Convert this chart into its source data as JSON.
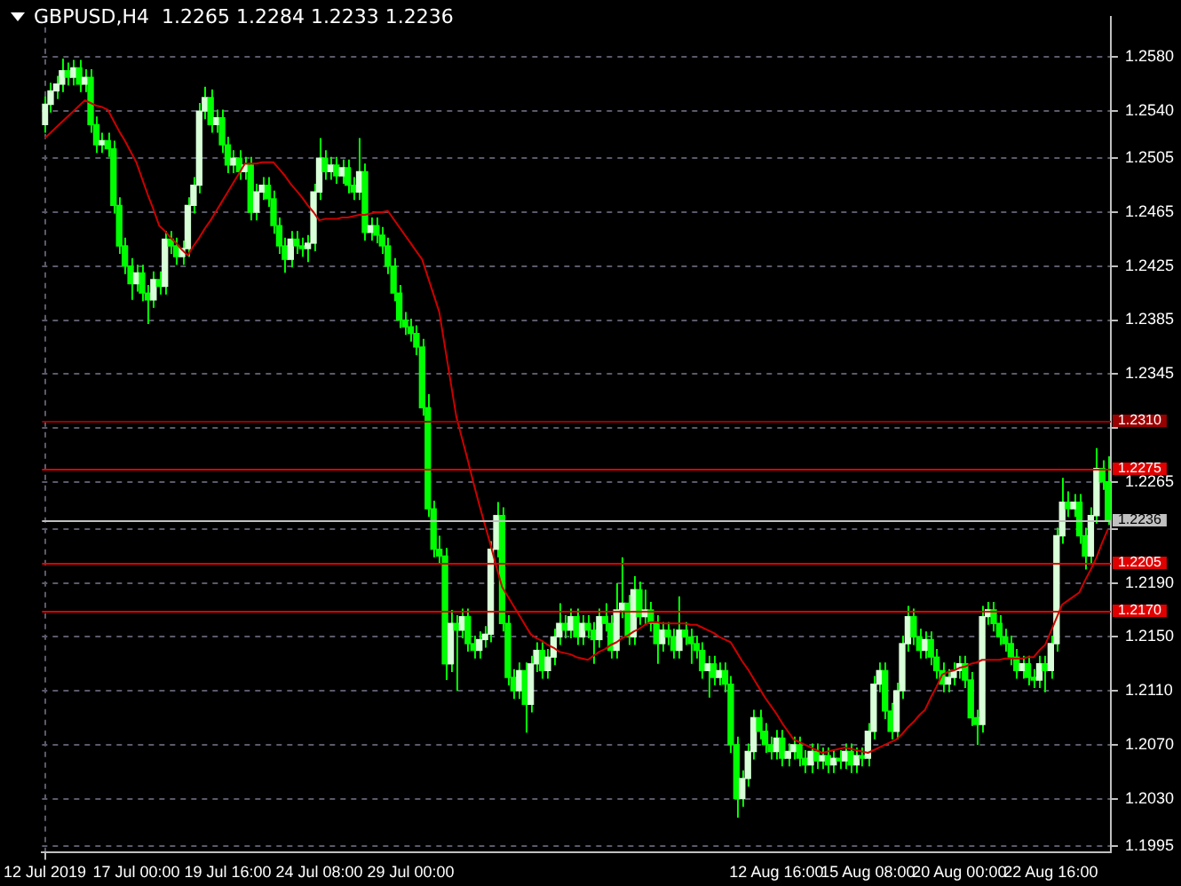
{
  "chart_data": {
    "type": "candlestick",
    "title": "GBPUSD,H4  1.2265 1.2284 1.2233 1.2236",
    "categories": [
      "12 Jul 2019",
      null,
      null,
      null,
      null,
      null,
      null,
      null,
      null,
      null,
      null,
      null,
      null,
      null,
      null,
      null,
      "17 Jul 00:00",
      null,
      null,
      null,
      null,
      null,
      null,
      null,
      null,
      null,
      null,
      null,
      null,
      null,
      null,
      null,
      "19 Jul 16:00",
      null,
      null,
      null,
      null,
      null,
      null,
      null,
      null,
      null,
      null,
      null,
      null,
      null,
      null,
      null,
      "24 Jul 08:00",
      null,
      null,
      null,
      null,
      null,
      null,
      null,
      null,
      null,
      null,
      null,
      null,
      null,
      null,
      null,
      "29 Jul 00:00",
      null,
      null,
      null,
      null,
      null,
      null,
      null,
      null,
      null,
      null,
      null,
      null,
      null,
      null,
      null,
      null,
      null,
      null,
      null,
      null,
      null,
      null,
      null,
      null,
      null,
      null,
      null,
      null,
      null,
      null,
      null,
      null,
      null,
      null,
      null,
      null,
      null,
      null,
      null,
      null,
      null,
      null,
      null,
      null,
      null,
      null,
      null,
      null,
      null,
      null,
      null,
      null,
      null,
      null,
      null,
      null,
      null,
      null,
      null,
      null,
      null,
      null,
      null,
      "12 Aug 16:00",
      null,
      null,
      null,
      null,
      null,
      null,
      null,
      null,
      null,
      null,
      null,
      null,
      null,
      null,
      null,
      "15 Aug 08:00",
      null,
      null,
      null,
      null,
      null,
      null,
      null,
      null,
      null,
      null,
      null,
      null,
      null,
      null,
      null,
      "20 Aug 00:00",
      null,
      null,
      null,
      null,
      null,
      null,
      null,
      null,
      null,
      null,
      null,
      null,
      null,
      null,
      null,
      "22 Aug 16:00",
      null,
      null,
      null,
      null,
      null,
      null,
      null,
      null,
      null,
      null
    ],
    "series": [
      {
        "type": "candlestick",
        "color": "#00ff00",
        "colors": [
          "#d8ffd8",
          "#d8ffd8",
          "#d8ffd8",
          "#d8ffd8",
          "#00ff00",
          "#d8ffd8",
          "#00ff00",
          "#d8ffd8",
          "#00ff00",
          "#00ff00",
          "#d8ffd8",
          "#00ff00",
          "#00ff00",
          "#00ff00",
          "#00ff00",
          "#00ff00",
          "#d8ffd8",
          "#00ff00",
          "#00ff00",
          "#d8ffd8",
          "#00ff00",
          "#d8ffd8",
          "#00ff00",
          "#00ff00",
          "#d8ffd8",
          "#d8ffd8",
          "#d8ffd8",
          "#d8ffd8",
          "#d8ffd8",
          "#00ff00",
          "#d8ffd8",
          "#00ff00",
          "#00ff00",
          "#d8ffd8",
          "#00ff00",
          "#d8ffd8",
          "#00ff00",
          "#d8ffd8",
          "#d8ffd8",
          "#00ff00",
          "#00ff00",
          "#00ff00",
          "#00ff00",
          "#d8ffd8",
          "#00ff00",
          "#00ff00",
          "#d8ffd8",
          "#d8ffd8",
          "#d8ffd8",
          "#00ff00",
          "#d8ffd8",
          "#00ff00",
          "#d8ffd8",
          "#00ff00",
          "#00ff00",
          "#d8ffd8",
          "#00ff00",
          "#d8ffd8",
          "#00ff00",
          "#00ff00",
          "#00ff00",
          "#00ff00",
          "#00ff00",
          "#00ff00",
          "#00ff00",
          "#00ff00",
          "#00ff00",
          "#00ff00",
          "#00ff00",
          "#00ff00",
          "#00ff00",
          "#d8ffd8",
          "#00ff00",
          "#d8ffd8",
          "#00ff00",
          "#00ff00",
          "#d8ffd8",
          "#d8ffd8",
          "#d8ffd8",
          "#d8ffd8",
          "#00ff00",
          "#00ff00",
          "#00ff00",
          "#d8ffd8",
          "#00ff00",
          "#d8ffd8",
          "#d8ffd8",
          "#00ff00",
          "#d8ffd8",
          "#d8ffd8",
          "#d8ffd8",
          "#00ff00",
          "#d8ffd8",
          "#00ff00",
          "#d8ffd8",
          "#00ff00",
          "#00ff00",
          "#d8ffd8",
          "#00ff00",
          "#00ff00",
          "#d8ffd8",
          "#d8ffd8",
          "#00ff00",
          "#d8ffd8",
          "#00ff00",
          "#d8ffd8",
          "#00ff00",
          "#00ff00",
          "#d8ffd8",
          "#00ff00",
          "#00ff00",
          "#d8ffd8",
          "#00ff00",
          "#00ff00",
          "#00ff00",
          "#00ff00",
          "#d8ffd8",
          "#00ff00",
          "#d8ffd8",
          "#00ff00",
          "#00ff00",
          "#00ff00",
          "#d8ffd8",
          "#d8ffd8",
          "#d8ffd8",
          "#00ff00",
          "#00ff00",
          "#00ff00",
          "#d8ffd8",
          "#00ff00",
          "#d8ffd8",
          "#d8ffd8",
          "#00ff00",
          "#00ff00",
          "#d8ffd8",
          "#00ff00",
          "#d8ffd8",
          "#00ff00",
          "#d8ffd8",
          "#00ff00",
          "#d8ffd8",
          "#00ff00",
          "#d8ffd8",
          "#00ff00",
          "#d8ffd8",
          "#d8ffd8",
          "#d8ffd8",
          "#00ff00",
          "#00ff00",
          "#d8ffd8",
          "#d8ffd8",
          "#d8ffd8",
          "#00ff00",
          "#00ff00",
          "#d8ffd8",
          "#00ff00",
          "#00ff00",
          "#00ff00",
          "#d8ffd8",
          "#d8ffd8",
          "#d8ffd8",
          "#00ff00",
          "#00ff00",
          "#00ff00",
          "#d8ffd8",
          "#d8ffd8",
          "#00ff00",
          "#00ff00",
          "#00ff00",
          "#00ff00",
          "#00ff00",
          "#d8ffd8",
          "#00ff00",
          "#00ff00",
          "#d8ffd8",
          "#00ff00",
          "#d8ffd8",
          "#d8ffd8",
          "#d8ffd8",
          "#00ff00",
          "#d8ffd8",
          "#00ff00",
          "#00ff00",
          "#d8ffd8",
          "#d8ffd8",
          "#00ff00",
          "#00ff00"
        ],
        "ohlc": [
          [
            1.253,
            1.2551,
            1.2524,
            1.2545
          ],
          [
            1.2545,
            1.2561,
            1.2539,
            1.2555
          ],
          [
            1.2555,
            1.2566,
            1.2549,
            1.256
          ],
          [
            1.256,
            1.2579,
            1.2554,
            1.257
          ],
          [
            1.257,
            1.2576,
            1.2559,
            1.2565
          ],
          [
            1.2565,
            1.2578,
            1.2559,
            1.2572
          ],
          [
            1.2572,
            1.2578,
            1.2554,
            1.256
          ],
          [
            1.256,
            1.2571,
            1.2554,
            1.2565
          ],
          [
            1.2565,
            1.2571,
            1.2524,
            1.253
          ],
          [
            1.253,
            1.2536,
            1.2509,
            1.2515
          ],
          [
            1.2515,
            1.2524,
            1.2509,
            1.2518
          ],
          [
            1.2518,
            1.2524,
            1.2506,
            1.2512
          ],
          [
            1.2512,
            1.2518,
            1.2464,
            1.247
          ],
          [
            1.247,
            1.2476,
            1.2434,
            1.244
          ],
          [
            1.244,
            1.2446,
            1.2419,
            1.2425
          ],
          [
            1.2425,
            1.2431,
            1.24,
            1.2412
          ],
          [
            1.2412,
            1.2426,
            1.2406,
            1.242
          ],
          [
            1.242,
            1.2426,
            1.2399,
            1.2405
          ],
          [
            1.2405,
            1.2411,
            1.2382,
            1.24
          ],
          [
            1.24,
            1.2421,
            1.2394,
            1.2415
          ],
          [
            1.2415,
            1.2421,
            1.2404,
            1.241
          ],
          [
            1.241,
            1.2451,
            1.2404,
            1.2445
          ],
          [
            1.2445,
            1.2451,
            1.2434,
            1.244
          ],
          [
            1.244,
            1.2446,
            1.2426,
            1.2432
          ],
          [
            1.2432,
            1.2444,
            1.2426,
            1.2438
          ],
          [
            1.2438,
            1.2476,
            1.2432,
            1.247
          ],
          [
            1.247,
            1.2491,
            1.2464,
            1.2485
          ],
          [
            1.2485,
            1.2546,
            1.2479,
            1.254
          ],
          [
            1.254,
            1.2558,
            1.2534,
            1.255
          ],
          [
            1.255,
            1.2556,
            1.2524,
            1.253
          ],
          [
            1.253,
            1.2541,
            1.2524,
            1.2535
          ],
          [
            1.2535,
            1.2541,
            1.2509,
            1.2515
          ],
          [
            1.2515,
            1.2521,
            1.2494,
            1.25
          ],
          [
            1.25,
            1.2511,
            1.2494,
            1.2505
          ],
          [
            1.2505,
            1.2511,
            1.2489,
            1.2495
          ],
          [
            1.2495,
            1.2506,
            1.2489,
            1.25
          ],
          [
            1.25,
            1.2506,
            1.2459,
            1.2465
          ],
          [
            1.2465,
            1.2486,
            1.2459,
            1.248
          ],
          [
            1.248,
            1.2491,
            1.2474,
            1.2485
          ],
          [
            1.2485,
            1.2491,
            1.2469,
            1.2475
          ],
          [
            1.2475,
            1.2481,
            1.2449,
            1.2455
          ],
          [
            1.2455,
            1.2461,
            1.2434,
            1.244
          ],
          [
            1.244,
            1.2446,
            1.242,
            1.243
          ],
          [
            1.243,
            1.2451,
            1.2424,
            1.2445
          ],
          [
            1.2445,
            1.2451,
            1.2434,
            1.244
          ],
          [
            1.244,
            1.2446,
            1.2432,
            1.2438
          ],
          [
            1.2438,
            1.2448,
            1.2428,
            1.2442
          ],
          [
            1.2442,
            1.2486,
            1.2436,
            1.248
          ],
          [
            1.248,
            1.252,
            1.2474,
            1.2505
          ],
          [
            1.2505,
            1.2511,
            1.2489,
            1.2495
          ],
          [
            1.2495,
            1.2506,
            1.2489,
            1.25
          ],
          [
            1.25,
            1.2506,
            1.2486,
            1.2492
          ],
          [
            1.2492,
            1.2504,
            1.2486,
            1.2498
          ],
          [
            1.2498,
            1.2504,
            1.2479,
            1.2485
          ],
          [
            1.2485,
            1.2491,
            1.2474,
            1.248
          ],
          [
            1.248,
            1.252,
            1.2474,
            1.2495
          ],
          [
            1.2495,
            1.2501,
            1.2444,
            1.245
          ],
          [
            1.245,
            1.2461,
            1.2444,
            1.2455
          ],
          [
            1.2455,
            1.2461,
            1.2442,
            1.2448
          ],
          [
            1.2448,
            1.2454,
            1.2434,
            1.244
          ],
          [
            1.244,
            1.2446,
            1.2419,
            1.2425
          ],
          [
            1.2425,
            1.2431,
            1.2399,
            1.2405
          ],
          [
            1.2405,
            1.2411,
            1.2379,
            1.2385
          ],
          [
            1.2385,
            1.2391,
            1.2374,
            1.238
          ],
          [
            1.238,
            1.2386,
            1.2369,
            1.2375
          ],
          [
            1.2375,
            1.2381,
            1.2359,
            1.2365
          ],
          [
            1.2365,
            1.2371,
            1.2314,
            1.232
          ],
          [
            1.232,
            1.233,
            1.2239,
            1.2245
          ],
          [
            1.2245,
            1.2251,
            1.2209,
            1.2215
          ],
          [
            1.2215,
            1.2225,
            1.2204,
            1.221
          ],
          [
            1.221,
            1.2216,
            1.2118,
            1.213
          ],
          [
            1.213,
            1.217,
            1.2124,
            1.216
          ],
          [
            1.216,
            1.2166,
            1.211,
            1.2155
          ],
          [
            1.2155,
            1.2171,
            1.2149,
            1.2165
          ],
          [
            1.2165,
            1.2171,
            1.2139,
            1.2145
          ],
          [
            1.2145,
            1.2151,
            1.2134,
            1.214
          ],
          [
            1.214,
            1.2154,
            1.2134,
            1.2148
          ],
          [
            1.2148,
            1.2158,
            1.2142,
            1.2152
          ],
          [
            1.2152,
            1.2221,
            1.2146,
            1.2215
          ],
          [
            1.2215,
            1.225,
            1.2209,
            1.224
          ],
          [
            1.224,
            1.2246,
            1.2154,
            1.216
          ],
          [
            1.216,
            1.2166,
            1.2114,
            1.212
          ],
          [
            1.212,
            1.2126,
            1.2104,
            1.211
          ],
          [
            1.211,
            1.2131,
            1.2104,
            1.2125
          ],
          [
            1.2125,
            1.2131,
            1.2079,
            1.21
          ],
          [
            1.21,
            1.2136,
            1.2094,
            1.213
          ],
          [
            1.213,
            1.2146,
            1.2124,
            1.214
          ],
          [
            1.214,
            1.2146,
            1.2119,
            1.2125
          ],
          [
            1.2125,
            1.2141,
            1.2119,
            1.2135
          ],
          [
            1.2135,
            1.2156,
            1.2129,
            1.215
          ],
          [
            1.215,
            1.2175,
            1.2144,
            1.216
          ],
          [
            1.216,
            1.2166,
            1.2149,
            1.2155
          ],
          [
            1.2155,
            1.2171,
            1.2149,
            1.2165
          ],
          [
            1.2165,
            1.2171,
            1.2144,
            1.215
          ],
          [
            1.215,
            1.2166,
            1.2144,
            1.216
          ],
          [
            1.216,
            1.2166,
            1.2149,
            1.2155
          ],
          [
            1.2155,
            1.2161,
            1.213,
            1.2148
          ],
          [
            1.2148,
            1.2171,
            1.2142,
            1.2165
          ],
          [
            1.2165,
            1.2175,
            1.2154,
            1.216
          ],
          [
            1.216,
            1.2166,
            1.2134,
            1.214
          ],
          [
            1.214,
            1.219,
            1.2134,
            1.217
          ],
          [
            1.217,
            1.2209,
            1.2164,
            1.2175
          ],
          [
            1.2175,
            1.2181,
            1.2144,
            1.215
          ],
          [
            1.215,
            1.2195,
            1.2144,
            1.2185
          ],
          [
            1.2185,
            1.2191,
            1.2159,
            1.2165
          ],
          [
            1.2165,
            1.2185,
            1.2159,
            1.217
          ],
          [
            1.217,
            1.2176,
            1.2154,
            1.216
          ],
          [
            1.216,
            1.2166,
            1.213,
            1.2145
          ],
          [
            1.2145,
            1.2161,
            1.2139,
            1.2155
          ],
          [
            1.2155,
            1.2161,
            1.2144,
            1.215
          ],
          [
            1.215,
            1.2156,
            1.2134,
            1.214
          ],
          [
            1.214,
            1.218,
            1.2134,
            1.2155
          ],
          [
            1.2155,
            1.2161,
            1.2144,
            1.215
          ],
          [
            1.215,
            1.2156,
            1.213,
            1.2145
          ],
          [
            1.2145,
            1.2151,
            1.2134,
            1.214
          ],
          [
            1.214,
            1.2146,
            1.2119,
            1.2125
          ],
          [
            1.2125,
            1.2136,
            1.2105,
            1.213
          ],
          [
            1.213,
            1.2136,
            1.2114,
            1.212
          ],
          [
            1.212,
            1.2131,
            1.2114,
            1.2125
          ],
          [
            1.2125,
            1.2131,
            1.2109,
            1.2115
          ],
          [
            1.2115,
            1.2121,
            1.2064,
            1.207
          ],
          [
            1.207,
            1.2076,
            1.2016,
            1.203
          ],
          [
            1.203,
            1.2051,
            1.2024,
            1.2045
          ],
          [
            1.2045,
            1.2071,
            1.2039,
            1.2065
          ],
          [
            1.2065,
            1.2096,
            1.2059,
            1.209
          ],
          [
            1.209,
            1.2096,
            1.2074,
            1.208
          ],
          [
            1.208,
            1.2086,
            1.2064,
            1.207
          ],
          [
            1.207,
            1.2076,
            1.2059,
            1.2065
          ],
          [
            1.2065,
            1.2081,
            1.2059,
            1.2075
          ],
          [
            1.2075,
            1.2081,
            1.2054,
            1.206
          ],
          [
            1.206,
            1.2071,
            1.2054,
            1.2065
          ],
          [
            1.2065,
            1.2076,
            1.2059,
            1.207
          ],
          [
            1.207,
            1.2076,
            1.2054,
            1.206
          ],
          [
            1.206,
            1.2066,
            1.2049,
            1.2055
          ],
          [
            1.2055,
            1.2071,
            1.2049,
            1.2065
          ],
          [
            1.2065,
            1.2071,
            1.2052,
            1.2058
          ],
          [
            1.2058,
            1.2068,
            1.2052,
            1.2062
          ],
          [
            1.2062,
            1.2068,
            1.2049,
            1.2055
          ],
          [
            1.2055,
            1.2066,
            1.2049,
            1.206
          ],
          [
            1.206,
            1.2066,
            1.2052,
            1.2058
          ],
          [
            1.2058,
            1.2071,
            1.2052,
            1.2065
          ],
          [
            1.2065,
            1.2071,
            1.2049,
            1.2055
          ],
          [
            1.2055,
            1.2068,
            1.2049,
            1.2062
          ],
          [
            1.2062,
            1.2068,
            1.2054,
            1.206
          ],
          [
            1.206,
            1.2086,
            1.2054,
            1.208
          ],
          [
            1.208,
            1.2121,
            1.2074,
            1.2115
          ],
          [
            1.2115,
            1.2131,
            1.2109,
            1.2125
          ],
          [
            1.2125,
            1.2131,
            1.2089,
            1.2095
          ],
          [
            1.2095,
            1.2101,
            1.2074,
            1.208
          ],
          [
            1.208,
            1.2116,
            1.2074,
            1.211
          ],
          [
            1.211,
            1.2151,
            1.2104,
            1.2145
          ],
          [
            1.2145,
            1.2173,
            1.2139,
            1.2165
          ],
          [
            1.2165,
            1.2171,
            1.2144,
            1.215
          ],
          [
            1.215,
            1.2156,
            1.2134,
            1.214
          ],
          [
            1.214,
            1.2154,
            1.2134,
            1.2148
          ],
          [
            1.2148,
            1.2154,
            1.2129,
            1.2135
          ],
          [
            1.2135,
            1.2141,
            1.2119,
            1.2125
          ],
          [
            1.2125,
            1.2131,
            1.2109,
            1.2115
          ],
          [
            1.2115,
            1.2126,
            1.2109,
            1.212
          ],
          [
            1.212,
            1.2131,
            1.2114,
            1.2125
          ],
          [
            1.2125,
            1.2136,
            1.2119,
            1.213
          ],
          [
            1.213,
            1.2136,
            1.2112,
            1.2118
          ],
          [
            1.2118,
            1.2124,
            1.2084,
            1.209
          ],
          [
            1.209,
            1.2096,
            1.207,
            1.2085
          ],
          [
            1.2085,
            1.2173,
            1.2079,
            1.2165
          ],
          [
            1.2165,
            1.2176,
            1.2159,
            1.217
          ],
          [
            1.217,
            1.2176,
            1.2154,
            1.216
          ],
          [
            1.216,
            1.2166,
            1.2144,
            1.215
          ],
          [
            1.215,
            1.2156,
            1.2139,
            1.2145
          ],
          [
            1.2145,
            1.2151,
            1.2129,
            1.2135
          ],
          [
            1.2135,
            1.2141,
            1.2119,
            1.2125
          ],
          [
            1.2125,
            1.2136,
            1.2119,
            1.213
          ],
          [
            1.213,
            1.2136,
            1.2114,
            1.212
          ],
          [
            1.212,
            1.2126,
            1.2112,
            1.2118
          ],
          [
            1.2118,
            1.2136,
            1.2112,
            1.213
          ],
          [
            1.213,
            1.2136,
            1.2109,
            1.2125
          ],
          [
            1.2125,
            1.2151,
            1.2119,
            1.2145
          ],
          [
            1.2145,
            1.2231,
            1.2139,
            1.2225
          ],
          [
            1.2225,
            1.2268,
            1.2219,
            1.225
          ],
          [
            1.225,
            1.2258,
            1.2239,
            1.2245
          ],
          [
            1.2245,
            1.2256,
            1.2239,
            1.225
          ],
          [
            1.225,
            1.2256,
            1.2219,
            1.2225
          ],
          [
            1.2225,
            1.2231,
            1.22,
            1.221
          ],
          [
            1.221,
            1.2246,
            1.2204,
            1.224
          ],
          [
            1.224,
            1.229,
            1.2234,
            1.2275
          ],
          [
            1.2275,
            1.2281,
            1.2259,
            1.2265
          ],
          [
            1.2265,
            1.2284,
            1.2233,
            1.2236
          ]
        ]
      },
      {
        "type": "line",
        "color": "#cc0000",
        "values": [
          1.252,
          1.2524,
          1.2528,
          1.2532,
          1.2536,
          1.254,
          1.2544,
          1.2548,
          1.2546,
          1.2544,
          1.2543,
          1.2541,
          1.2533,
          1.2525,
          1.2518,
          1.251,
          1.2502,
          1.249,
          1.2478,
          1.2467,
          1.2455,
          1.2451,
          1.2446,
          1.2442,
          1.2437,
          1.2433,
          1.244,
          1.2446,
          1.2453,
          1.2459,
          1.2466,
          1.2473,
          1.248,
          1.2487,
          1.2494,
          1.2501,
          1.2501,
          1.2501,
          1.2502,
          1.2502,
          1.2502,
          1.2497,
          1.2492,
          1.2486,
          1.2481,
          1.2476,
          1.247,
          1.2465,
          1.2459,
          1.246,
          1.246,
          1.246,
          1.2461,
          1.2461,
          1.2462,
          1.2463,
          1.2463,
          1.2464,
          1.2465,
          1.2465,
          1.2466,
          1.246,
          1.2454,
          1.2448,
          1.2442,
          1.2436,
          1.243,
          1.2417,
          1.2404,
          1.2391,
          1.2365,
          1.2339,
          1.2313,
          1.2297,
          1.2281,
          1.2264,
          1.2248,
          1.2233,
          1.2218,
          1.2202,
          1.2187,
          1.218,
          1.2173,
          1.2166,
          1.2159,
          1.2152,
          1.2149,
          1.2147,
          1.2144,
          1.2142,
          1.2139,
          1.2138,
          1.2137,
          1.2135,
          1.2134,
          1.2133,
          1.2136,
          1.2139,
          1.2141,
          1.2144,
          1.2146,
          1.2149,
          1.2151,
          1.2154,
          1.2156,
          1.2159,
          1.2161,
          1.2161,
          1.216,
          1.216,
          1.216,
          1.216,
          1.216,
          1.2159,
          1.2159,
          1.2157,
          1.2155,
          1.2153,
          1.215,
          1.2148,
          1.2146,
          1.2139,
          1.2132,
          1.2126,
          1.2119,
          1.2112,
          1.2105,
          1.2099,
          1.2093,
          1.2086,
          1.208,
          1.2074,
          1.2072,
          1.207,
          1.2068,
          1.2066,
          1.2064,
          1.2065,
          1.2066,
          1.2067,
          1.2068,
          1.2067,
          1.2066,
          1.2065,
          1.2064,
          1.2066,
          1.2068,
          1.207,
          1.2072,
          1.2074,
          1.2078,
          1.2083,
          1.2087,
          1.2092,
          1.2096,
          1.2105,
          1.2113,
          1.2122,
          1.2124,
          1.2125,
          1.2127,
          1.2128,
          1.213,
          1.2131,
          1.2133,
          1.2133,
          1.2133,
          1.2133,
          1.2134,
          1.2134,
          1.2134,
          1.2134,
          1.2135,
          1.2135,
          1.214,
          1.2144,
          1.2154,
          1.2164,
          1.2174,
          1.2177,
          1.218,
          1.2183,
          1.2192,
          1.22,
          1.2209,
          1.222,
          1.223
        ]
      }
    ],
    "ylim": [
      1.199,
      1.261
    ],
    "yticks": [
      {
        "value": 1.258,
        "label": "1.2580"
      },
      {
        "value": 1.254,
        "label": "1.2540"
      },
      {
        "value": 1.2505,
        "label": "1.2505"
      },
      {
        "value": 1.2465,
        "label": "1.2465"
      },
      {
        "value": 1.2425,
        "label": "1.2425"
      },
      {
        "value": 1.2385,
        "label": "1.2385"
      },
      {
        "value": 1.2345,
        "label": "1.2345"
      },
      {
        "value": 1.2305,
        "label": null
      },
      {
        "value": 1.2265,
        "label": "1.2265"
      },
      {
        "value": 1.223,
        "label": null
      },
      {
        "value": 1.219,
        "label": "1.2190"
      },
      {
        "value": 1.215,
        "label": "1.2150"
      },
      {
        "value": 1.211,
        "label": "1.2110"
      },
      {
        "value": 1.207,
        "label": "1.2070"
      },
      {
        "value": 1.203,
        "label": "1.2030"
      },
      {
        "value": 1.1995,
        "label": "1.1995"
      }
    ],
    "ref_lines": [
      {
        "axis": "y",
        "value": 1.231,
        "label": "1.2310",
        "color": "#990000"
      },
      {
        "axis": "y",
        "value": 1.2275,
        "label": "1.2275",
        "color": "#e00000"
      },
      {
        "axis": "y",
        "value": 1.2236,
        "label": "1.2236",
        "color": "#c0c0c0"
      },
      {
        "axis": "y",
        "value": 1.2205,
        "label": "1.2205",
        "color": "#e00000"
      },
      {
        "axis": "y",
        "value": 1.217,
        "label": "1.2170",
        "color": "#e00000"
      }
    ],
    "grid": true,
    "legend": false
  }
}
